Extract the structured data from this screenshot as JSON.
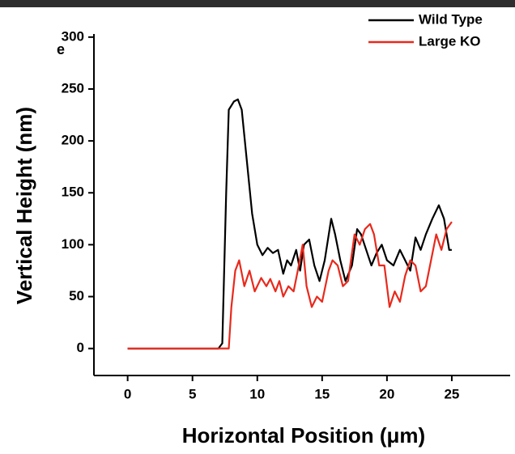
{
  "chart_data": {
    "type": "line",
    "panel_label": "e",
    "xlabel": "Horizontal Position (μm)",
    "ylabel": "Vertical Height (nm)",
    "xlim": [
      -2.6,
      29.5
    ],
    "ylim": [
      -26,
      303
    ],
    "xticks": [
      0,
      5,
      10,
      15,
      20,
      25
    ],
    "yticks": [
      0,
      50,
      100,
      150,
      200,
      250,
      300
    ],
    "legend": "top-right",
    "series": [
      {
        "name": "Wild Type",
        "color": "#000000",
        "x": [
          0,
          7,
          7.3,
          7.6,
          7.8,
          8.2,
          8.5,
          8.8,
          9.2,
          9.6,
          10,
          10.4,
          10.8,
          11.2,
          11.6,
          12,
          12.3,
          12.6,
          13,
          13.3,
          13.6,
          14,
          14.4,
          14.8,
          15.2,
          15.7,
          16,
          16.4,
          16.8,
          17.3,
          17.7,
          18,
          18.4,
          18.8,
          19.2,
          19.6,
          20,
          20.5,
          21,
          21.4,
          21.8,
          22.2,
          22.6,
          23,
          23.5,
          24,
          24.4,
          24.8,
          25
        ],
        "values": [
          0,
          0,
          5,
          150,
          230,
          238,
          240,
          230,
          180,
          130,
          100,
          90,
          97,
          92,
          95,
          72,
          85,
          80,
          95,
          75,
          100,
          105,
          80,
          65,
          85,
          125,
          110,
          85,
          65,
          80,
          115,
          110,
          95,
          80,
          92,
          100,
          85,
          80,
          95,
          85,
          75,
          107,
          95,
          110,
          125,
          138,
          125,
          95,
          95
        ]
      },
      {
        "name": "Large KO",
        "color": "#e8291c",
        "x": [
          0,
          7.8,
          8,
          8.3,
          8.6,
          9,
          9.4,
          9.8,
          10.3,
          10.7,
          11,
          11.4,
          11.7,
          12,
          12.4,
          12.8,
          13.2,
          13.5,
          13.8,
          14.2,
          14.6,
          15,
          15.5,
          15.8,
          16.2,
          16.6,
          17,
          17.5,
          17.9,
          18.3,
          18.7,
          19,
          19.4,
          19.8,
          20.2,
          20.6,
          21,
          21.4,
          21.8,
          22.2,
          22.6,
          23,
          23.4,
          23.8,
          24.2,
          24.6,
          25
        ],
        "values": [
          0,
          0,
          40,
          75,
          85,
          60,
          75,
          55,
          68,
          60,
          67,
          55,
          65,
          50,
          60,
          55,
          80,
          100,
          60,
          40,
          50,
          45,
          75,
          85,
          80,
          60,
          65,
          110,
          100,
          115,
          120,
          110,
          80,
          80,
          40,
          55,
          45,
          70,
          85,
          80,
          55,
          60,
          85,
          110,
          95,
          115,
          122
        ]
      }
    ]
  }
}
